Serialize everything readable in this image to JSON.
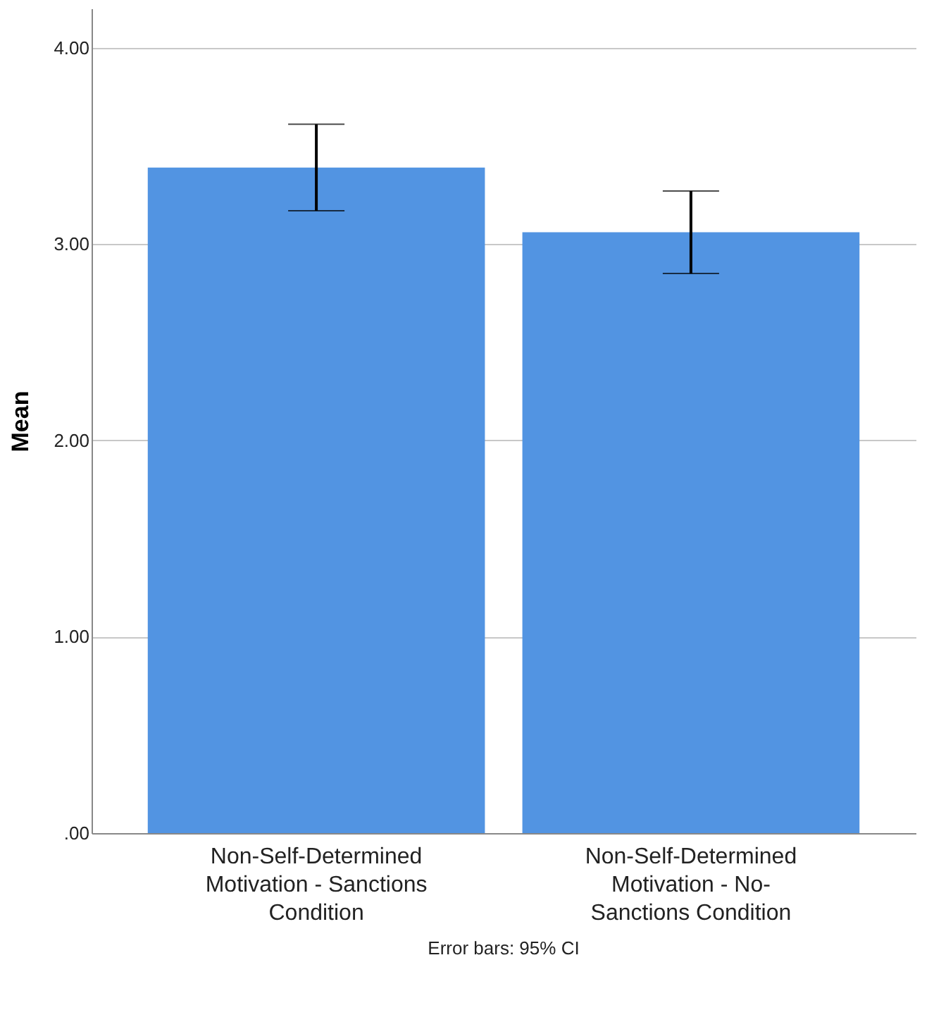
{
  "chart_data": {
    "type": "bar",
    "ylabel": "Mean",
    "categories": [
      "Non-Self-Determined Motivation - Sanctions Condition",
      "Non-Self-Determined Motivation - No-Sanctions Condition"
    ],
    "values": [
      3.39,
      3.06
    ],
    "color": "#5294e2",
    "errors": [
      [
        3.17,
        3.61
      ],
      [
        2.85,
        3.27
      ]
    ],
    "ylim": [
      0,
      4.2
    ],
    "yticks": [
      {
        "value": 0,
        "label": ".00"
      },
      {
        "value": 1,
        "label": "1.00"
      },
      {
        "value": 2,
        "label": "2.00"
      },
      {
        "value": 3,
        "label": "3.00"
      },
      {
        "value": 4,
        "label": "4.00"
      }
    ],
    "grid": "y",
    "annotations": [
      "Error bars: 95% CI"
    ]
  }
}
